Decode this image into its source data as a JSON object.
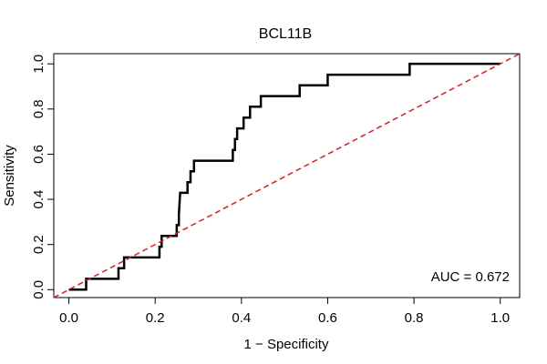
{
  "chart_data": {
    "type": "line",
    "title": "BCL11B",
    "xlabel": "1 − Specificity",
    "ylabel": "Sensitivity",
    "xlim": [
      -0.035,
      1.045
    ],
    "ylim": [
      -0.035,
      1.045
    ],
    "x_ticks": [
      0.0,
      0.2,
      0.4,
      0.6,
      0.8,
      1.0
    ],
    "x_tick_labels": [
      "0.0",
      "0.2",
      "0.4",
      "0.6",
      "0.8",
      "1.0"
    ],
    "y_ticks": [
      0.0,
      0.2,
      0.4,
      0.6,
      0.8,
      1.0
    ],
    "y_tick_labels": [
      "0.0",
      "0.2",
      "0.4",
      "0.6",
      "0.8",
      "1.0"
    ],
    "grid": false,
    "annotation": "AUC = 0.672",
    "colors": {
      "roc": "#000000",
      "reference": "#e41a1c",
      "frame": "#000000"
    },
    "series": [
      {
        "style": "solid-thick",
        "color": "#000000",
        "points": [
          [
            0.0,
            0.0
          ],
          [
            0.04,
            0.0
          ],
          [
            0.04,
            0.048
          ],
          [
            0.115,
            0.048
          ],
          [
            0.115,
            0.095
          ],
          [
            0.128,
            0.095
          ],
          [
            0.128,
            0.143
          ],
          [
            0.21,
            0.143
          ],
          [
            0.21,
            0.19
          ],
          [
            0.215,
            0.19
          ],
          [
            0.215,
            0.238
          ],
          [
            0.25,
            0.238
          ],
          [
            0.25,
            0.286
          ],
          [
            0.255,
            0.286
          ],
          [
            0.255,
            0.333
          ],
          [
            0.258,
            0.429
          ],
          [
            0.275,
            0.429
          ],
          [
            0.275,
            0.476
          ],
          [
            0.282,
            0.476
          ],
          [
            0.282,
            0.524
          ],
          [
            0.29,
            0.524
          ],
          [
            0.29,
            0.571
          ],
          [
            0.38,
            0.571
          ],
          [
            0.38,
            0.619
          ],
          [
            0.385,
            0.619
          ],
          [
            0.385,
            0.667
          ],
          [
            0.39,
            0.667
          ],
          [
            0.39,
            0.714
          ],
          [
            0.405,
            0.714
          ],
          [
            0.405,
            0.762
          ],
          [
            0.42,
            0.762
          ],
          [
            0.42,
            0.81
          ],
          [
            0.445,
            0.81
          ],
          [
            0.445,
            0.857
          ],
          [
            0.535,
            0.857
          ],
          [
            0.535,
            0.905
          ],
          [
            0.6,
            0.905
          ],
          [
            0.6,
            0.952
          ],
          [
            0.79,
            0.952
          ],
          [
            0.79,
            1.0
          ],
          [
            1.0,
            1.0
          ]
        ]
      },
      {
        "style": "dashed",
        "color": "#e41a1c",
        "points": [
          [
            -0.035,
            -0.035
          ],
          [
            1.045,
            1.045
          ]
        ]
      }
    ]
  }
}
